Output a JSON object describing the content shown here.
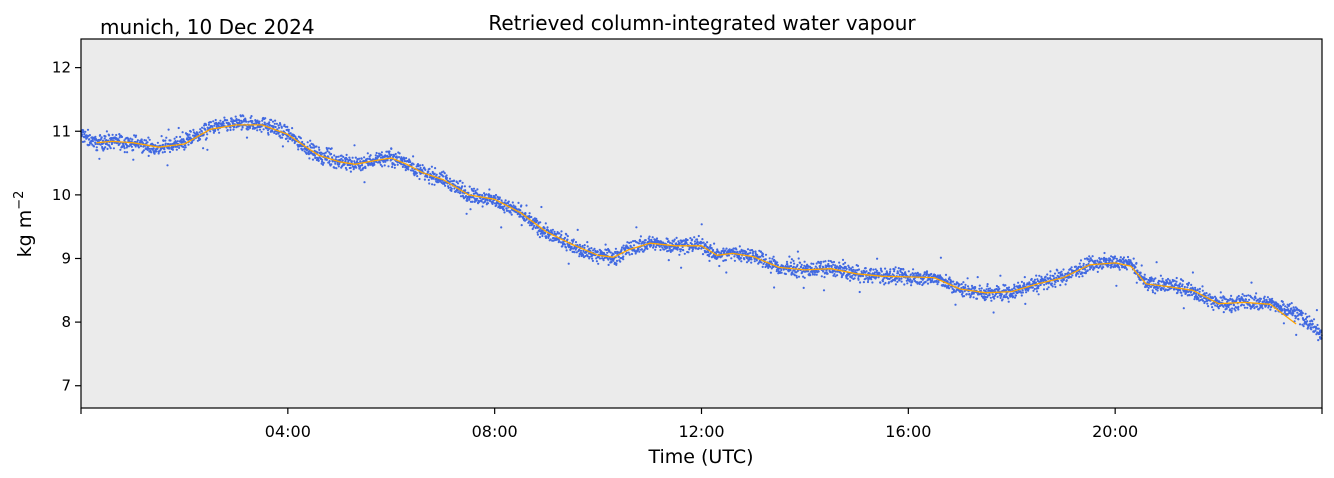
{
  "chart_data": {
    "type": "scatter",
    "title": "Retrieved column-integrated water vapour",
    "location_label": "munich, 10 Dec 2024",
    "xlabel": "Time (UTC)",
    "ylabel": "kg m",
    "ylabel_superscript": "−2",
    "xlim_hours": [
      0,
      24
    ],
    "ylim": [
      6.65,
      12.45
    ],
    "x_ticks": [
      {
        "hour": 4,
        "label": "04:00"
      },
      {
        "hour": 8,
        "label": "08:00"
      },
      {
        "hour": 12,
        "label": "12:00"
      },
      {
        "hour": 16,
        "label": "16:00"
      },
      {
        "hour": 20,
        "label": "20:00"
      }
    ],
    "y_ticks": [
      {
        "value": 7,
        "label": "7"
      },
      {
        "value": 8,
        "label": "8"
      },
      {
        "value": 9,
        "label": "9"
      },
      {
        "value": 10,
        "label": "10"
      },
      {
        "value": 11,
        "label": "11"
      },
      {
        "value": 12,
        "label": "12"
      }
    ],
    "grid": false,
    "plot_background": "#ebebeb",
    "series": [
      {
        "kind": "scatter",
        "color": "#4169e1",
        "x_hours": [
          0.0,
          0.3,
          0.6,
          1.0,
          1.5,
          2.0,
          2.5,
          3.0,
          3.5,
          4.0,
          4.3,
          4.6,
          5.0,
          5.3,
          5.7,
          6.0,
          6.3,
          6.6,
          7.0,
          7.5,
          8.0,
          8.5,
          9.0,
          9.5,
          10.0,
          10.3,
          10.6,
          11.0,
          11.5,
          12.0,
          12.3,
          12.6,
          13.0,
          13.5,
          14.0,
          14.5,
          15.0,
          15.5,
          16.0,
          16.5,
          17.0,
          17.5,
          18.0,
          18.5,
          19.0,
          19.5,
          20.0,
          20.3,
          20.6,
          21.0,
          21.5,
          22.0,
          22.5,
          23.0,
          23.5,
          24.0
        ],
        "values": [
          10.95,
          10.82,
          10.85,
          10.82,
          10.73,
          10.82,
          11.05,
          11.12,
          11.12,
          10.95,
          10.78,
          10.62,
          10.52,
          10.48,
          10.55,
          10.6,
          10.5,
          10.35,
          10.25,
          10.0,
          9.92,
          9.7,
          9.4,
          9.2,
          9.05,
          9.02,
          9.15,
          9.25,
          9.2,
          9.22,
          9.05,
          9.1,
          9.05,
          8.85,
          8.82,
          8.85,
          8.75,
          8.72,
          8.7,
          8.7,
          8.52,
          8.45,
          8.48,
          8.62,
          8.7,
          8.92,
          8.95,
          8.9,
          8.6,
          8.58,
          8.5,
          8.28,
          8.32,
          8.3,
          8.15,
          7.8
        ],
        "spread": 0.11
      },
      {
        "kind": "line",
        "color": "#ffa500",
        "x_hours": [
          0.3,
          0.6,
          1.0,
          1.5,
          2.0,
          2.5,
          3.0,
          3.5,
          4.0,
          4.3,
          4.6,
          5.0,
          5.3,
          5.7,
          6.0,
          6.3,
          6.6,
          7.0,
          7.5,
          8.0,
          8.5,
          9.0,
          9.5,
          10.0,
          10.3,
          10.6,
          11.0,
          11.5,
          12.0,
          12.3,
          12.6,
          13.0,
          13.5,
          14.0,
          14.5,
          15.0,
          15.5,
          16.0,
          16.5,
          17.0,
          17.5,
          18.0,
          18.5,
          19.0,
          19.5,
          20.0,
          20.3,
          20.6,
          21.0,
          21.5,
          22.0,
          22.5,
          23.0,
          23.5
        ],
        "values": [
          10.82,
          10.84,
          10.82,
          10.75,
          10.8,
          11.03,
          11.1,
          11.1,
          10.95,
          10.78,
          10.62,
          10.52,
          10.48,
          10.54,
          10.58,
          10.48,
          10.35,
          10.24,
          10.0,
          9.93,
          9.72,
          9.42,
          9.22,
          9.05,
          9.02,
          9.14,
          9.24,
          9.2,
          9.2,
          9.05,
          9.08,
          9.03,
          8.86,
          8.82,
          8.84,
          8.76,
          8.72,
          8.71,
          8.7,
          8.52,
          8.46,
          8.48,
          8.6,
          8.7,
          8.9,
          8.93,
          8.88,
          8.6,
          8.56,
          8.5,
          8.29,
          8.31,
          8.28,
          7.97
        ]
      }
    ]
  }
}
